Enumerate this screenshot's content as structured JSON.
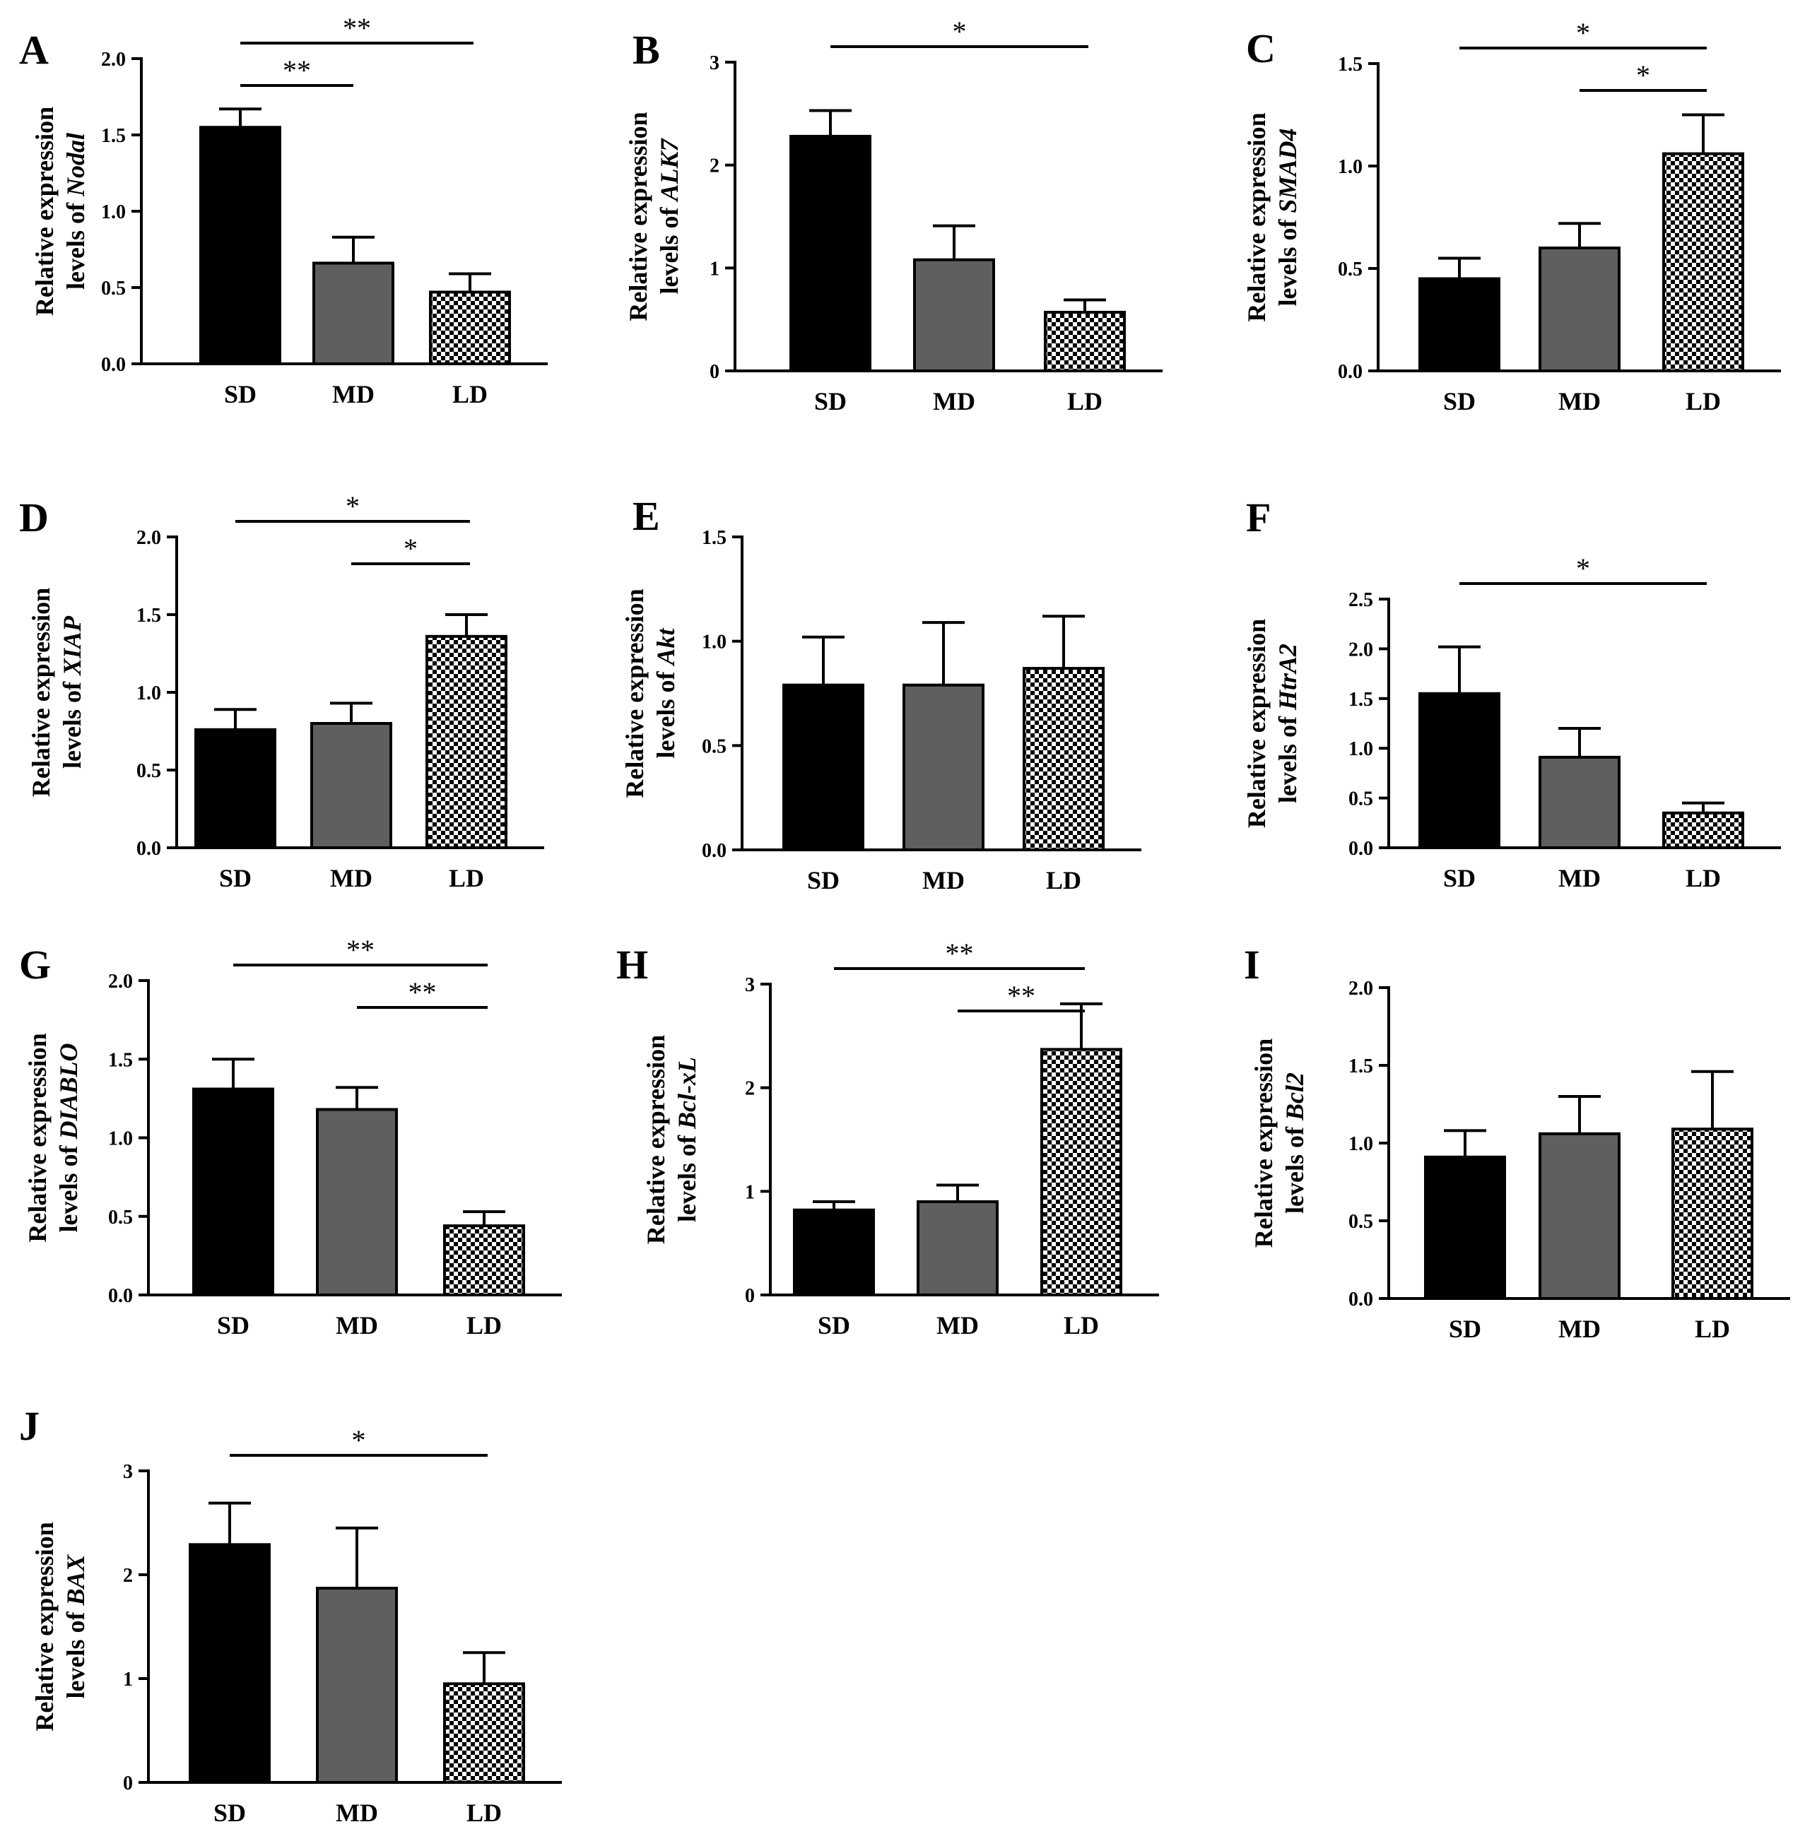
{
  "figure": {
    "colors": {
      "SD": "#000000",
      "MD": "#5f5f5f",
      "LD_check": "#000000",
      "axis": "#000000"
    },
    "patterns": {
      "SD": "solid",
      "MD": "solid",
      "LD": "checkerboard"
    }
  },
  "chart_data": [
    {
      "panel": "A",
      "type": "bar",
      "categories": [
        "SD",
        "MD",
        "LD"
      ],
      "values": [
        1.55,
        0.66,
        0.47
      ],
      "errors": [
        0.12,
        0.17,
        0.12
      ],
      "ylim": [
        0,
        2.0
      ],
      "yticks": [
        "0.0",
        "0.5",
        "1.0",
        "1.5",
        "2.0"
      ],
      "ylabel_line1": "Relative expression",
      "ylabel_prefix": "levels of ",
      "gene": "Nodal",
      "significance": [
        {
          "from": 0,
          "to": 2,
          "label": "**"
        },
        {
          "from": 0,
          "to": 1,
          "label": "**"
        }
      ]
    },
    {
      "panel": "B",
      "type": "bar",
      "categories": [
        "SD",
        "MD",
        "LD"
      ],
      "values": [
        2.28,
        1.08,
        0.57
      ],
      "errors": [
        0.25,
        0.33,
        0.12
      ],
      "ylim": [
        0,
        3
      ],
      "yticks": [
        "0",
        "1",
        "2",
        "3"
      ],
      "ylabel_line1": "Relative expression",
      "ylabel_prefix": "levels of ",
      "gene": "ALK7",
      "significance": [
        {
          "from": 0,
          "to": 2,
          "label": "*"
        }
      ]
    },
    {
      "panel": "C",
      "type": "bar",
      "categories": [
        "SD",
        "MD",
        "LD"
      ],
      "values": [
        0.45,
        0.6,
        1.06
      ],
      "errors": [
        0.1,
        0.12,
        0.19
      ],
      "ylim": [
        0,
        1.5
      ],
      "yticks": [
        "0.0",
        "0.5",
        "1.0",
        "1.5"
      ],
      "ylabel_line1": "Relative expression",
      "ylabel_prefix": "levels of ",
      "gene": "SMAD4",
      "significance": [
        {
          "from": 0,
          "to": 2,
          "label": "*"
        },
        {
          "from": 1,
          "to": 2,
          "label": "*"
        }
      ]
    },
    {
      "panel": "D",
      "type": "bar",
      "categories": [
        "SD",
        "MD",
        "LD"
      ],
      "values": [
        0.76,
        0.8,
        1.36
      ],
      "errors": [
        0.13,
        0.13,
        0.14
      ],
      "ylim": [
        0,
        2.0
      ],
      "yticks": [
        "0.0",
        "0.5",
        "1.0",
        "1.5",
        "2.0"
      ],
      "ylabel_line1": "Relative expression",
      "ylabel_prefix": "levels of ",
      "gene": "XIAP",
      "significance": [
        {
          "from": 0,
          "to": 2,
          "label": "*"
        },
        {
          "from": 1,
          "to": 2,
          "label": "*"
        }
      ]
    },
    {
      "panel": "E",
      "type": "bar",
      "categories": [
        "SD",
        "MD",
        "LD"
      ],
      "values": [
        0.79,
        0.79,
        0.87
      ],
      "errors": [
        0.23,
        0.3,
        0.25
      ],
      "ylim": [
        0,
        1.5
      ],
      "yticks": [
        "0.0",
        "0.5",
        "1.0",
        "1.5"
      ],
      "ylabel_line1": "Relative expression",
      "ylabel_prefix": "levels of ",
      "gene": "Akt",
      "significance": []
    },
    {
      "panel": "F",
      "type": "bar",
      "categories": [
        "SD",
        "MD",
        "LD"
      ],
      "values": [
        1.55,
        0.91,
        0.35
      ],
      "errors": [
        0.47,
        0.29,
        0.1
      ],
      "ylim": [
        0,
        2.5
      ],
      "yticks": [
        "0.0",
        "0.5",
        "1.0",
        "1.5",
        "2.0",
        "2.5"
      ],
      "ylabel_line1": "Relative expression",
      "ylabel_prefix": "levels of ",
      "gene": "HtrA2",
      "significance": [
        {
          "from": 0,
          "to": 2,
          "label": "*"
        }
      ]
    },
    {
      "panel": "G",
      "type": "bar",
      "categories": [
        "SD",
        "MD",
        "LD"
      ],
      "values": [
        1.31,
        1.18,
        0.44
      ],
      "errors": [
        0.19,
        0.14,
        0.09
      ],
      "ylim": [
        0,
        2.0
      ],
      "yticks": [
        "0.0",
        "0.5",
        "1.0",
        "1.5",
        "2.0"
      ],
      "ylabel_line1": "Relative expression",
      "ylabel_prefix": "levels of ",
      "gene": "DIABLO",
      "significance": [
        {
          "from": 0,
          "to": 2,
          "label": "**"
        },
        {
          "from": 1,
          "to": 2,
          "label": "**"
        }
      ]
    },
    {
      "panel": "H",
      "type": "bar",
      "categories": [
        "SD",
        "MD",
        "LD"
      ],
      "values": [
        0.82,
        0.9,
        2.37
      ],
      "errors": [
        0.08,
        0.16,
        0.44
      ],
      "ylim": [
        0,
        3
      ],
      "yticks": [
        "0",
        "1",
        "2",
        "3"
      ],
      "ylabel_line1": "Relative expression",
      "ylabel_prefix": "levels of ",
      "gene": "Bcl-xL",
      "significance": [
        {
          "from": 0,
          "to": 2,
          "label": "**"
        },
        {
          "from": 1,
          "to": 2,
          "label": "**"
        }
      ]
    },
    {
      "panel": "I",
      "type": "bar",
      "categories": [
        "SD",
        "MD",
        "LD"
      ],
      "values": [
        0.91,
        1.06,
        1.09
      ],
      "errors": [
        0.17,
        0.24,
        0.37
      ],
      "ylim": [
        0,
        2.0
      ],
      "yticks": [
        "0.0",
        "0.5",
        "1.0",
        "1.5",
        "2.0"
      ],
      "ylabel_line1": "Relative expression",
      "ylabel_prefix": "levels of ",
      "gene": "Bcl2",
      "significance": []
    },
    {
      "panel": "J",
      "type": "bar",
      "categories": [
        "SD",
        "MD",
        "LD"
      ],
      "values": [
        2.29,
        1.87,
        0.95
      ],
      "errors": [
        0.4,
        0.58,
        0.3
      ],
      "ylim": [
        0,
        3
      ],
      "yticks": [
        "0",
        "1",
        "2",
        "3"
      ],
      "ylabel_line1": "Relative expression",
      "ylabel_prefix": "levels of ",
      "gene": "BAX",
      "significance": [
        {
          "from": 0,
          "to": 2,
          "label": "*"
        }
      ]
    }
  ]
}
